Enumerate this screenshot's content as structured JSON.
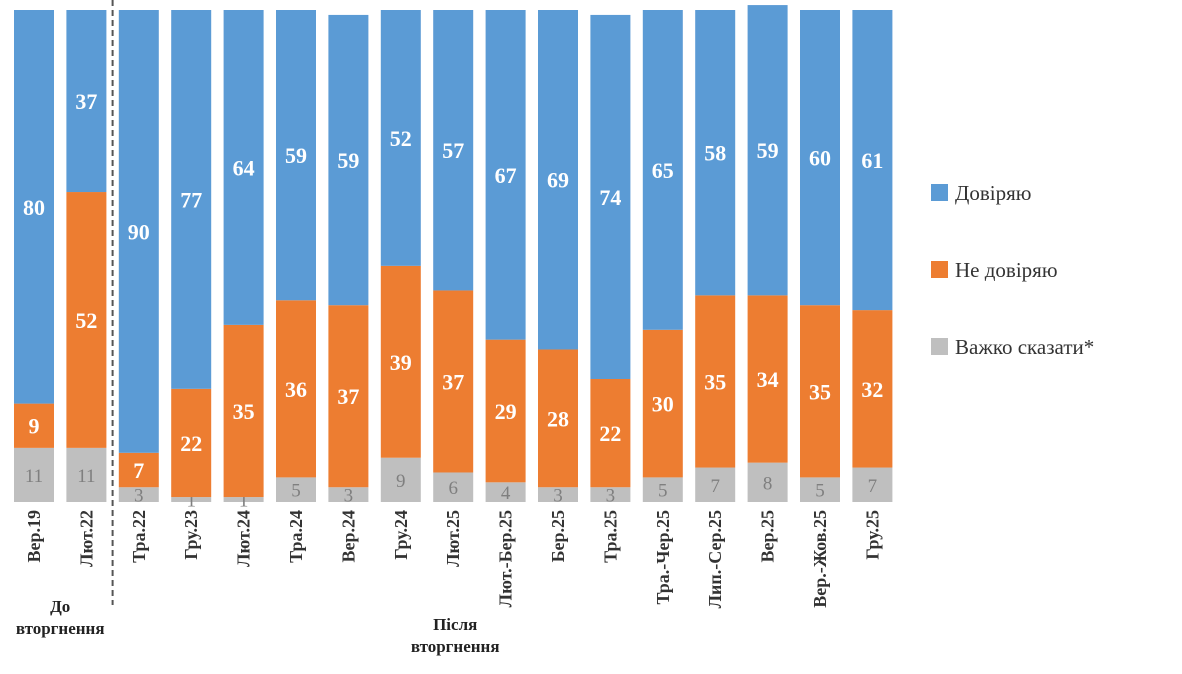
{
  "chart_data": {
    "type": "bar",
    "stacked": true,
    "percent_stacked": true,
    "categories": [
      "Вер.19",
      "Лют.22",
      "Тра.22",
      "Гру.23",
      "Лют.24",
      "Тра.24",
      "Вер.24",
      "Гру.24",
      "Лют.25",
      "Лют.-Бер.25",
      "Бер.25",
      "Тра.25",
      "Тра.-Чер.25",
      "Лип.-Сер.25",
      "Вер.25",
      "Вер.-Жов.25",
      "Гру.25"
    ],
    "series": [
      {
        "name": "Важко сказати*",
        "color": "#BFBFBF",
        "values": [
          11,
          11,
          3,
          1,
          1,
          5,
          3,
          9,
          6,
          4,
          3,
          3,
          5,
          7,
          8,
          5,
          7
        ]
      },
      {
        "name": "Не довіряю",
        "color": "#ED7D31",
        "values": [
          9,
          52,
          7,
          22,
          35,
          36,
          37,
          39,
          37,
          29,
          28,
          22,
          30,
          35,
          34,
          35,
          32
        ]
      },
      {
        "name": "Довіряю",
        "color": "#5B9BD5",
        "values": [
          80,
          37,
          90,
          77,
          64,
          59,
          59,
          52,
          57,
          67,
          69,
          74,
          65,
          58,
          59,
          60,
          61
        ]
      }
    ],
    "legend": [
      "Довіряю",
      "Не довіряю",
      "Важко сказати*"
    ],
    "legend_position": "right",
    "group_labels": [
      {
        "text": "До вторгнення",
        "spans_categories": [
          "Вер.19",
          "Лют.22"
        ]
      },
      {
        "text": "Після вторгнення",
        "spans_categories": [
          "Тра.22",
          "Гру.25"
        ]
      }
    ],
    "divider_after_category": "Лют.22",
    "ylim": [
      0,
      100
    ]
  }
}
